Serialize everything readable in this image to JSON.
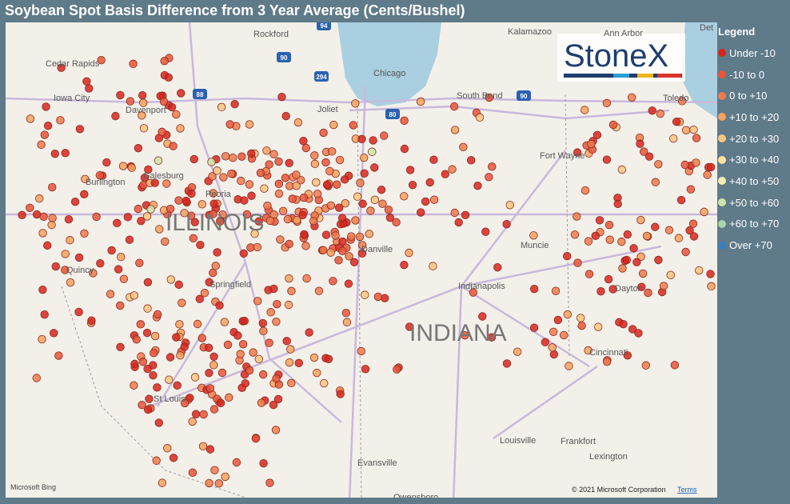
{
  "title": "Soybean Spot Basis Difference from 3 Year Average (Cents/Bushel)",
  "legend": {
    "title": "Legend",
    "items": [
      {
        "label": "Under -10",
        "color": "#d7261e"
      },
      {
        "label": "-10 to 0",
        "color": "#e8553a"
      },
      {
        "label": "0 to +10",
        "color": "#ef7b4c"
      },
      {
        "label": "+10 to +20",
        "color": "#f6a25f"
      },
      {
        "label": "+20 to +30",
        "color": "#fcc680"
      },
      {
        "label": "+30 to +40",
        "color": "#fde3a0"
      },
      {
        "label": "+40 to +50",
        "color": "#f1efb2"
      },
      {
        "label": "+50 to +60",
        "color": "#cce7a8"
      },
      {
        "label": "+60 to +70",
        "color": "#a6d6a3"
      },
      {
        "label": "Over +70",
        "color": "#3b7fc0"
      }
    ]
  },
  "logo": "StoneX",
  "map_labels": {
    "cities": [
      "Rockford",
      "Cedar Rapids",
      "Iowa City",
      "Davenport",
      "Chicago",
      "Kalamazoo",
      "Ann Arbor",
      "Det",
      "Toledo",
      "South Bend",
      "Joliet",
      "Galesburg",
      "Burlington",
      "Peoria",
      "Quincy",
      "Springfield",
      "Danville",
      "Fort Wayne",
      "Muncie",
      "Indianapolis",
      "Dayton",
      "Cincinnati",
      "St Louis",
      "Louisville",
      "Frankfort",
      "Lexington",
      "Evansville",
      "Owensboro"
    ],
    "states": [
      "ILLINOIS",
      "INDIANA"
    ],
    "highways": [
      "94",
      "90",
      "294",
      "88",
      "80",
      "90"
    ]
  },
  "attribution": {
    "provider": "Microsoft Bing",
    "copyright": "© 2021 Microsoft Corporation",
    "terms": "Terms"
  }
}
